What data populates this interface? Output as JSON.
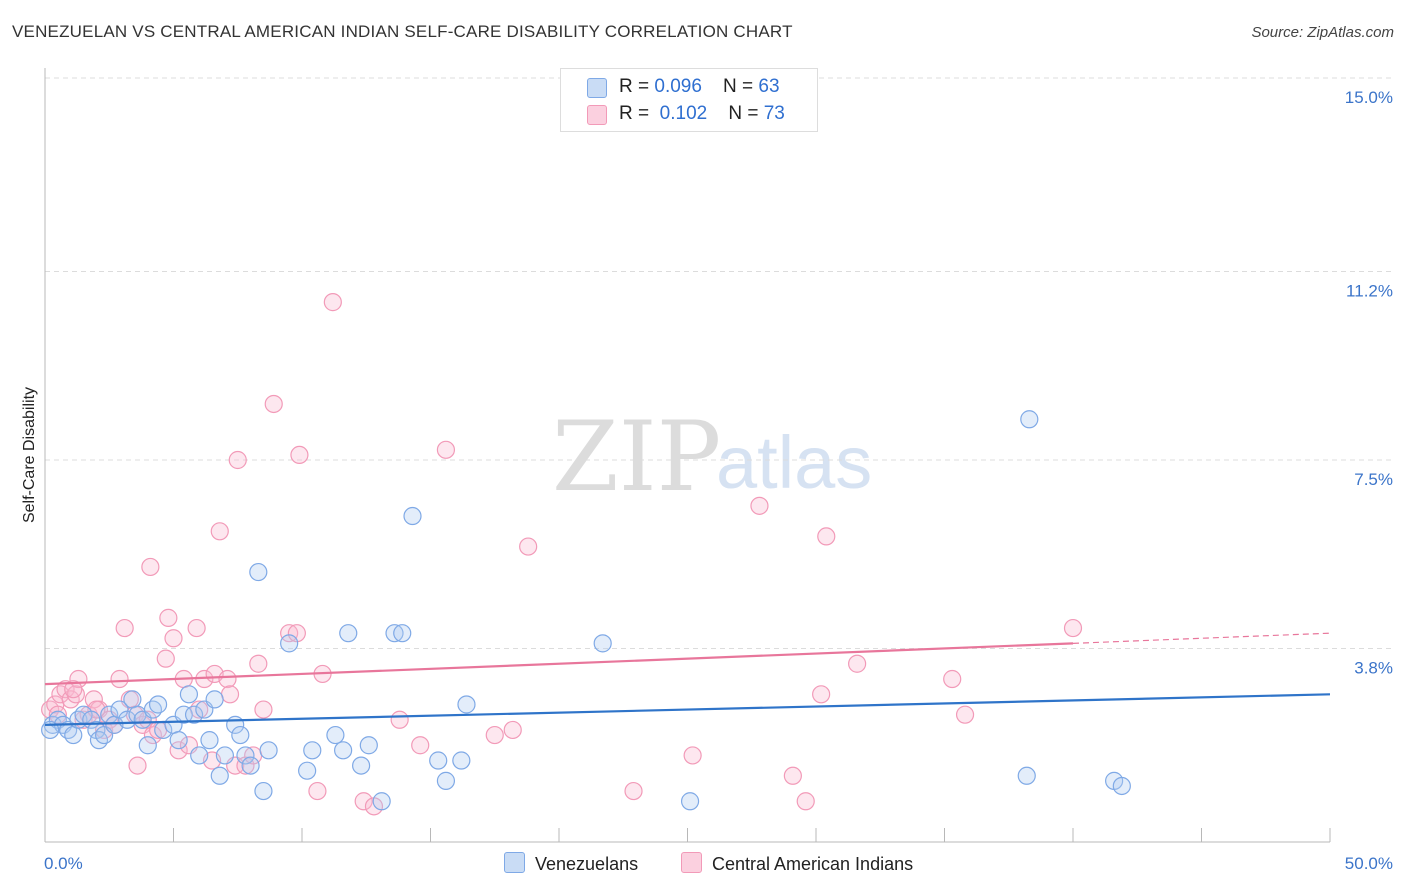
{
  "chart_data": {
    "type": "scatter",
    "title": "VENEZUELAN VS CENTRAL AMERICAN INDIAN SELF-CARE DISABILITY CORRELATION CHART",
    "source": "Source: ZipAtlas.com",
    "ylabel": "Self-Care Disability",
    "xlim": [
      0,
      50
    ],
    "ylim": [
      0,
      15
    ],
    "x_tick_labels": [
      "0.0%",
      "50.0%"
    ],
    "y_ticks": [
      3.8,
      7.5,
      11.2,
      15.0
    ],
    "y_tick_labels": [
      "3.8%",
      "7.5%",
      "11.2%",
      "15.0%"
    ],
    "watermark": {
      "zip": "ZIP",
      "atlas": "atlas"
    },
    "legend": {
      "rows": [
        {
          "r_label": "R = ",
          "r_value": "0.096",
          "n_label": "N = ",
          "n_value": "63"
        },
        {
          "r_label": "R = ",
          "r_value": "0.102",
          "n_label": "N = ",
          "n_value": "73"
        }
      ]
    },
    "series": [
      {
        "name": "Venezuelans",
        "color": "#7fa9e6",
        "line_color": "#2f74c9",
        "trend": {
          "x0": 0,
          "y0": 2.3,
          "x1": 50,
          "y1": 2.9
        },
        "points": [
          [
            0.3,
            2.3
          ],
          [
            0.5,
            2.4
          ],
          [
            0.7,
            2.3
          ],
          [
            0.9,
            2.2
          ],
          [
            1.1,
            2.1
          ],
          [
            1.3,
            2.4
          ],
          [
            1.5,
            2.5
          ],
          [
            1.8,
            2.4
          ],
          [
            2.0,
            2.2
          ],
          [
            2.1,
            2.0
          ],
          [
            2.3,
            2.1
          ],
          [
            2.5,
            2.5
          ],
          [
            2.7,
            2.3
          ],
          [
            2.9,
            2.6
          ],
          [
            3.2,
            2.4
          ],
          [
            3.4,
            2.8
          ],
          [
            3.6,
            2.5
          ],
          [
            3.8,
            2.4
          ],
          [
            4.0,
            1.9
          ],
          [
            4.2,
            2.6
          ],
          [
            4.4,
            2.7
          ],
          [
            4.6,
            2.2
          ],
          [
            5.0,
            2.3
          ],
          [
            5.2,
            2.0
          ],
          [
            5.4,
            2.5
          ],
          [
            5.6,
            2.9
          ],
          [
            5.8,
            2.5
          ],
          [
            6.0,
            1.7
          ],
          [
            6.2,
            2.6
          ],
          [
            6.4,
            2.0
          ],
          [
            6.6,
            2.8
          ],
          [
            6.8,
            1.3
          ],
          [
            7.0,
            1.7
          ],
          [
            7.4,
            2.3
          ],
          [
            7.6,
            2.1
          ],
          [
            7.8,
            1.7
          ],
          [
            8.0,
            1.5
          ],
          [
            8.3,
            5.3
          ],
          [
            8.5,
            1.0
          ],
          [
            8.7,
            1.8
          ],
          [
            9.5,
            3.9
          ],
          [
            10.2,
            1.4
          ],
          [
            10.4,
            1.8
          ],
          [
            11.3,
            2.1
          ],
          [
            11.6,
            1.8
          ],
          [
            11.8,
            4.1
          ],
          [
            12.3,
            1.5
          ],
          [
            12.6,
            1.9
          ],
          [
            13.1,
            0.8
          ],
          [
            13.6,
            4.1
          ],
          [
            13.9,
            4.1
          ],
          [
            14.3,
            6.4
          ],
          [
            15.3,
            1.6
          ],
          [
            15.6,
            1.2
          ],
          [
            16.2,
            1.6
          ],
          [
            16.4,
            2.7
          ],
          [
            21.7,
            3.9
          ],
          [
            25.1,
            0.8
          ],
          [
            38.3,
            8.3
          ],
          [
            38.2,
            1.3
          ],
          [
            41.6,
            1.2
          ],
          [
            41.9,
            1.1
          ],
          [
            0.2,
            2.2
          ]
        ]
      },
      {
        "name": "Central American Indians",
        "color": "#f29ab8",
        "line_color": "#e8769b",
        "trend": {
          "x0": 0,
          "y0": 3.1,
          "x1": 40,
          "y1": 3.9
        },
        "trend_ext": {
          "x0": 40,
          "y0": 3.9,
          "x1": 50,
          "y1": 4.1
        },
        "points": [
          [
            0.2,
            2.6
          ],
          [
            0.4,
            2.7
          ],
          [
            0.5,
            2.5
          ],
          [
            0.6,
            2.9
          ],
          [
            0.8,
            3.0
          ],
          [
            1.0,
            2.8
          ],
          [
            1.2,
            2.9
          ],
          [
            1.3,
            3.2
          ],
          [
            1.5,
            2.4
          ],
          [
            1.7,
            2.5
          ],
          [
            1.9,
            2.8
          ],
          [
            2.1,
            2.6
          ],
          [
            2.3,
            2.2
          ],
          [
            2.5,
            2.4
          ],
          [
            2.7,
            2.3
          ],
          [
            2.9,
            3.2
          ],
          [
            3.1,
            4.2
          ],
          [
            3.3,
            2.8
          ],
          [
            3.5,
            2.5
          ],
          [
            3.6,
            1.5
          ],
          [
            3.8,
            2.3
          ],
          [
            4.0,
            2.4
          ],
          [
            4.1,
            5.4
          ],
          [
            4.2,
            2.1
          ],
          [
            4.4,
            2.2
          ],
          [
            4.7,
            3.6
          ],
          [
            4.8,
            4.4
          ],
          [
            5.0,
            4.0
          ],
          [
            5.2,
            1.8
          ],
          [
            5.4,
            3.2
          ],
          [
            5.6,
            1.9
          ],
          [
            5.9,
            4.2
          ],
          [
            6.2,
            3.2
          ],
          [
            6.5,
            1.6
          ],
          [
            6.6,
            3.3
          ],
          [
            6.8,
            6.1
          ],
          [
            7.1,
            3.2
          ],
          [
            7.2,
            2.9
          ],
          [
            7.4,
            1.5
          ],
          [
            7.5,
            7.5
          ],
          [
            7.8,
            1.5
          ],
          [
            8.1,
            1.7
          ],
          [
            8.3,
            3.5
          ],
          [
            8.5,
            2.6
          ],
          [
            8.9,
            8.6
          ],
          [
            9.5,
            4.1
          ],
          [
            9.8,
            4.1
          ],
          [
            9.9,
            7.6
          ],
          [
            10.6,
            1.0
          ],
          [
            10.8,
            3.3
          ],
          [
            11.2,
            10.6
          ],
          [
            12.4,
            0.8
          ],
          [
            12.8,
            0.7
          ],
          [
            13.8,
            2.4
          ],
          [
            14.6,
            1.9
          ],
          [
            15.6,
            7.7
          ],
          [
            17.5,
            2.1
          ],
          [
            18.2,
            2.2
          ],
          [
            18.8,
            5.8
          ],
          [
            22.9,
            1.0
          ],
          [
            25.2,
            1.7
          ],
          [
            27.8,
            6.6
          ],
          [
            29.1,
            1.3
          ],
          [
            29.6,
            0.8
          ],
          [
            30.4,
            6.0
          ],
          [
            30.2,
            2.9
          ],
          [
            31.6,
            3.5
          ],
          [
            35.3,
            3.2
          ],
          [
            35.8,
            2.5
          ],
          [
            40.0,
            4.2
          ],
          [
            2.0,
            2.6
          ],
          [
            1.1,
            3.0
          ],
          [
            6.0,
            2.6
          ]
        ]
      }
    ]
  }
}
